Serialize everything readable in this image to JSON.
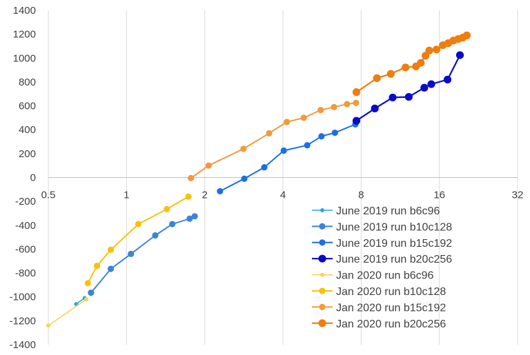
{
  "chart_data": {
    "type": "scatter",
    "title": "",
    "xlabel": "",
    "ylabel": "",
    "xscale": "log2",
    "xlim": [
      0.5,
      32
    ],
    "ylim": [
      -1400,
      1400
    ],
    "x_ticks": [
      0.5,
      1,
      2,
      4,
      8,
      16,
      32
    ],
    "x_tick_labels": [
      "0.5",
      "1",
      "2",
      "4",
      "8",
      "16",
      "32"
    ],
    "y_ticks": [
      -1400,
      -1200,
      -1000,
      -800,
      -600,
      -400,
      -200,
      0,
      200,
      400,
      600,
      800,
      1000,
      1200,
      1400
    ],
    "y_tick_labels": [
      "-1400",
      "-1200",
      "-1000",
      "-800",
      "-600",
      "-400",
      "-200",
      "0",
      "200",
      "400",
      "600",
      "800",
      "1000",
      "1200",
      "1400"
    ],
    "grid": "vertical",
    "legend_position": "bottom-right",
    "series": [
      {
        "name": "June 2019 run b6c96",
        "color": "#2AA8E0",
        "marker_size": "small",
        "x": [
          0.64,
          0.69
        ],
        "y": [
          -1060,
          -1010
        ]
      },
      {
        "name": "June 2019 run b10c128",
        "color": "#3A85D8",
        "marker_size": "medium",
        "x": [
          0.73,
          0.87,
          1.04,
          1.29,
          1.5,
          1.75,
          1.83
        ],
        "y": [
          -965,
          -765,
          -640,
          -485,
          -390,
          -345,
          -325
        ]
      },
      {
        "name": "June 2019 run b15c192",
        "color": "#1B6FE6",
        "marker_size": "medium",
        "x": [
          2.29,
          2.84,
          3.39,
          4.03,
          4.96,
          5.63,
          6.34,
          7.6
        ],
        "y": [
          -115,
          -10,
          85,
          225,
          270,
          345,
          375,
          445
        ]
      },
      {
        "name": "June 2019 run b20c256",
        "color": "#0A0ACC",
        "marker_size": "large",
        "x": [
          7.67,
          9.03,
          10.58,
          12.2,
          14.0,
          14.9,
          17.2,
          19.2
        ],
        "y": [
          475,
          578,
          670,
          675,
          752,
          782,
          820,
          1025
        ]
      },
      {
        "name": "Jan 2020 run b6c96",
        "color": "#FAD25A",
        "marker_size": "small",
        "x": [
          0.5,
          0.7
        ],
        "y": [
          -1240,
          -1020
        ]
      },
      {
        "name": "Jan 2020 run b10c128",
        "color": "#F7C10E",
        "marker_size": "medium",
        "x": [
          0.71,
          0.77,
          0.87,
          1.11,
          1.43,
          1.73
        ],
        "y": [
          -885,
          -740,
          -605,
          -390,
          -265,
          -160
        ]
      },
      {
        "name": "Jan 2020 run b15c192",
        "color": "#F39A3C",
        "marker_size": "medium",
        "x": [
          1.77,
          2.07,
          2.82,
          3.54,
          4.14,
          4.81,
          5.59,
          6.29,
          7.06,
          7.64
        ],
        "y": [
          -5,
          100,
          240,
          370,
          465,
          500,
          565,
          590,
          615,
          625
        ]
      },
      {
        "name": "Jan 2020 run b20c256",
        "color": "#F07D0C",
        "marker_size": "large",
        "x": [
          7.67,
          9.2,
          10.4,
          11.85,
          13.0,
          13.57,
          14.15,
          14.63,
          15.6,
          16.5,
          17.3,
          18.1,
          18.9,
          19.7,
          20.4
        ],
        "y": [
          715,
          832,
          868,
          922,
          930,
          960,
          1020,
          1063,
          1072,
          1108,
          1125,
          1147,
          1160,
          1172,
          1190
        ]
      }
    ]
  }
}
